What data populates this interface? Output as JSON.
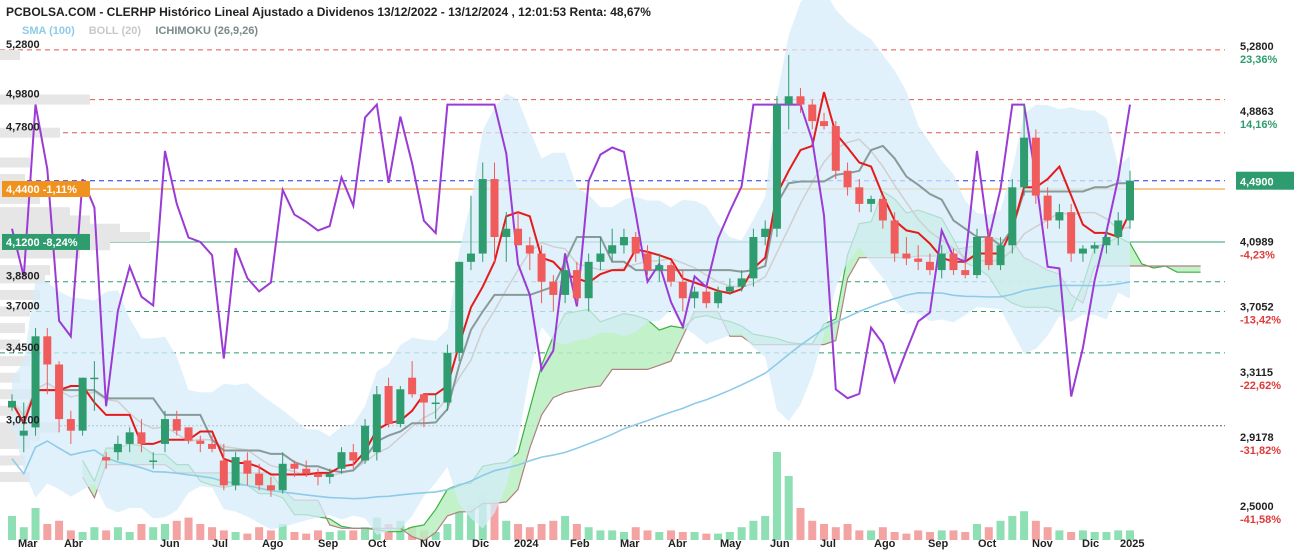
{
  "header": {
    "title": "PCBOLSA.COM - CLERHP Histórico Lineal Ajustado a Dividenos 13/12/2022 - 13/12/2024 , 12:01:53 Renta: 48,67%",
    "indicators": [
      {
        "label": "SMA (100)",
        "color": "#8ecbe8"
      },
      {
        "label": "BOLL (20)",
        "color": "#c8c8c8"
      },
      {
        "label": "ICHIMOKU (26,9,26)",
        "color": "#7a8a8a"
      }
    ]
  },
  "left_tags": [
    {
      "text": "4,4400 -1,11%",
      "value": 4.44,
      "bg": "#f0921e"
    },
    {
      "text": "4,1200 -8,24%",
      "value": 4.12,
      "bg": "#2e9c6e"
    }
  ],
  "right_last": {
    "text": "4,4900",
    "value": 4.49,
    "bg": "#2e9c6e"
  },
  "chart_data": {
    "type": "candlestick",
    "ylim": [
      2.38,
      5.34
    ],
    "x_labels": [
      "Mar",
      "Abr",
      "Jun",
      "Jul",
      "Ago",
      "Sep",
      "Oct",
      "Nov",
      "Dic",
      "2024",
      "Feb",
      "Mar",
      "Abr",
      "May",
      "Jun",
      "Jul",
      "Ago",
      "Sep",
      "Oct",
      "Nov",
      "Dic",
      "2025"
    ],
    "x_labels_bold": [
      "2024",
      "2025"
    ],
    "left_ticks": [
      "5,2800",
      "4,9800",
      "4,7800",
      "3,8800",
      "3,7000",
      "3,4500",
      "3,0100"
    ],
    "left_tick_values": [
      5.28,
      4.98,
      4.78,
      3.88,
      3.7,
      3.45,
      3.01
    ],
    "right_ticks": [
      {
        "price": "5,2800",
        "pct": "23,36%",
        "value": 5.28
      },
      {
        "price": "4,8863",
        "pct": "14,16%",
        "value": 4.8863
      },
      {
        "price": "4,4936",
        "pct": "",
        "value": 4.4936
      },
      {
        "price": "4,0989",
        "pct": "-4,23%",
        "value": 4.0989
      },
      {
        "price": "3,7052",
        "pct": "-13,42%",
        "value": 3.7052
      },
      {
        "price": "3,3115",
        "pct": "-22,62%",
        "value": 3.3115
      },
      {
        "price": "2,9178",
        "pct": "-31,82%",
        "value": 2.9178
      },
      {
        "price": "2,5000",
        "pct": "-41,58%",
        "value": 2.5
      }
    ],
    "reference_lines": [
      {
        "value": 5.28,
        "color": "#e05555",
        "style": "dashed"
      },
      {
        "value": 4.98,
        "color": "#e05555",
        "style": "dashed"
      },
      {
        "value": 4.78,
        "color": "#e05555",
        "style": "dashed"
      },
      {
        "value": 4.49,
        "color": "#2233dd",
        "style": "dashed"
      },
      {
        "value": 4.44,
        "color": "#f0921e",
        "style": "solid"
      },
      {
        "value": 4.12,
        "color": "#2e9c6e",
        "style": "solid"
      },
      {
        "value": 3.88,
        "color": "#2e9c6e",
        "style": "dashed"
      },
      {
        "value": 3.7,
        "color": "#2e9c6e",
        "style": "dashed"
      },
      {
        "value": 3.45,
        "color": "#2e9c6e",
        "style": "dashed"
      },
      {
        "value": 3.01,
        "color": "#555555",
        "style": "dotted"
      }
    ],
    "candles": [
      [
        3.12,
        3.2,
        3.1,
        3.16
      ],
      [
        2.95,
        3.15,
        2.85,
        2.98
      ],
      [
        3.0,
        3.6,
        2.95,
        3.55
      ],
      [
        3.55,
        3.6,
        3.2,
        3.38
      ],
      [
        3.38,
        3.4,
        2.97,
        3.05
      ],
      [
        3.05,
        3.1,
        2.9,
        2.98
      ],
      [
        2.98,
        3.3,
        2.95,
        3.3
      ],
      [
        3.3,
        3.4,
        3.1,
        3.3
      ],
      [
        2.82,
        2.85,
        2.75,
        2.8
      ],
      [
        2.85,
        2.95,
        2.8,
        2.9
      ],
      [
        2.9,
        3.0,
        2.85,
        2.97
      ],
      [
        2.97,
        3.05,
        2.85,
        2.9
      ],
      [
        2.8,
        2.85,
        2.75,
        2.8
      ],
      [
        2.9,
        3.1,
        2.85,
        3.05
      ],
      [
        3.05,
        3.1,
        2.95,
        2.98
      ],
      [
        3.0,
        3.0,
        2.9,
        2.92
      ],
      [
        2.92,
        2.95,
        2.85,
        2.9
      ],
      [
        2.9,
        2.95,
        2.85,
        2.87
      ],
      [
        2.8,
        2.9,
        2.62,
        2.65
      ],
      [
        2.65,
        2.85,
        2.62,
        2.82
      ],
      [
        2.8,
        2.85,
        2.65,
        2.72
      ],
      [
        2.72,
        2.78,
        2.62,
        2.65
      ],
      [
        2.65,
        2.7,
        2.58,
        2.62
      ],
      [
        2.62,
        2.85,
        2.6,
        2.78
      ],
      [
        2.78,
        2.8,
        2.7,
        2.75
      ],
      [
        2.75,
        2.8,
        2.7,
        2.72
      ],
      [
        2.72,
        2.75,
        2.65,
        2.7
      ],
      [
        2.7,
        2.75,
        2.66,
        2.72
      ],
      [
        2.75,
        2.88,
        2.72,
        2.85
      ],
      [
        2.85,
        2.9,
        2.75,
        2.8
      ],
      [
        2.8,
        3.05,
        2.78,
        3.01
      ],
      [
        2.85,
        3.25,
        2.8,
        3.2
      ],
      [
        3.25,
        3.3,
        3.0,
        3.02
      ],
      [
        3.02,
        3.25,
        3.0,
        3.23
      ],
      [
        3.3,
        3.4,
        3.18,
        3.2
      ],
      [
        3.2,
        3.2,
        3.0,
        3.15
      ],
      [
        3.15,
        3.2,
        3.05,
        3.15
      ],
      [
        3.15,
        3.5,
        3.1,
        3.45
      ],
      [
        3.45,
        4.0,
        3.4,
        4.0
      ],
      [
        4.0,
        4.4,
        3.95,
        4.05
      ],
      [
        4.05,
        4.6,
        4.0,
        4.5
      ],
      [
        4.5,
        4.6,
        4.0,
        4.15
      ],
      [
        4.15,
        4.3,
        4.0,
        4.2
      ],
      [
        4.2,
        4.3,
        4.1,
        4.1
      ],
      [
        4.1,
        4.15,
        3.95,
        4.05
      ],
      [
        4.05,
        4.1,
        3.75,
        3.88
      ],
      [
        3.88,
        3.92,
        3.7,
        3.8
      ],
      [
        3.8,
        4.0,
        3.75,
        3.95
      ],
      [
        3.95,
        4.0,
        3.75,
        3.78
      ],
      [
        3.78,
        4.05,
        3.7,
        4.0
      ],
      [
        4.0,
        4.15,
        3.95,
        4.05
      ],
      [
        4.05,
        4.2,
        4.0,
        4.1
      ],
      [
        4.1,
        4.2,
        4.05,
        4.15
      ],
      [
        4.15,
        4.18,
        4.0,
        4.05
      ],
      [
        4.05,
        4.1,
        3.92,
        3.95
      ],
      [
        3.95,
        4.05,
        3.88,
        3.98
      ],
      [
        3.98,
        4.0,
        3.85,
        3.88
      ],
      [
        3.88,
        3.95,
        3.7,
        3.78
      ],
      [
        3.78,
        3.85,
        3.72,
        3.82
      ],
      [
        3.82,
        3.85,
        3.72,
        3.75
      ],
      [
        3.75,
        3.85,
        3.72,
        3.82
      ],
      [
        3.82,
        3.9,
        3.8,
        3.85
      ],
      [
        3.85,
        3.95,
        3.82,
        3.9
      ],
      [
        3.9,
        4.2,
        3.85,
        4.15
      ],
      [
        4.15,
        4.25,
        4.1,
        4.2
      ],
      [
        4.2,
        5.0,
        4.15,
        4.95
      ],
      [
        4.95,
        5.25,
        4.8,
        5.0
      ],
      [
        5.0,
        5.05,
        4.9,
        4.95
      ],
      [
        4.95,
        4.98,
        4.8,
        4.85
      ],
      [
        4.85,
        4.9,
        4.8,
        4.82
      ],
      [
        4.82,
        4.85,
        4.5,
        4.55
      ],
      [
        4.55,
        4.6,
        4.4,
        4.45
      ],
      [
        4.45,
        4.5,
        4.3,
        4.35
      ],
      [
        4.35,
        4.4,
        4.3,
        4.38
      ],
      [
        4.38,
        4.4,
        4.2,
        4.25
      ],
      [
        4.25,
        4.3,
        4.0,
        4.05
      ],
      [
        4.05,
        4.15,
        3.98,
        4.02
      ],
      [
        4.02,
        4.1,
        3.95,
        4.0
      ],
      [
        4.0,
        4.05,
        3.92,
        3.95
      ],
      [
        3.95,
        4.1,
        3.9,
        4.05
      ],
      [
        4.05,
        4.08,
        3.92,
        3.95
      ],
      [
        3.95,
        4.0,
        3.9,
        3.92
      ],
      [
        3.92,
        4.2,
        3.9,
        4.15
      ],
      [
        4.15,
        4.2,
        3.95,
        3.98
      ],
      [
        3.98,
        4.15,
        3.95,
        4.1
      ],
      [
        4.1,
        4.5,
        4.05,
        4.45
      ],
      [
        4.45,
        4.95,
        4.4,
        4.75
      ],
      [
        4.75,
        4.8,
        4.35,
        4.4
      ],
      [
        4.4,
        4.45,
        4.2,
        4.25
      ],
      [
        4.25,
        4.35,
        4.2,
        4.3
      ],
      [
        4.3,
        4.35,
        4.0,
        4.05
      ],
      [
        4.05,
        4.1,
        4.0,
        4.08
      ],
      [
        4.08,
        4.12,
        4.05,
        4.1
      ],
      [
        4.1,
        4.2,
        4.05,
        4.15
      ],
      [
        4.15,
        4.3,
        4.1,
        4.25
      ],
      [
        4.25,
        4.55,
        4.2,
        4.49
      ]
    ],
    "volumes": [
      0.15,
      0.08,
      0.2,
      0.1,
      0.12,
      0.06,
      0.05,
      0.08,
      0.06,
      0.08,
      0.05,
      0.1,
      0.08,
      0.1,
      0.12,
      0.14,
      0.1,
      0.08,
      0.06,
      0.05,
      0.04,
      0.08,
      0.06,
      0.1,
      0.05,
      0.04,
      0.06,
      0.05,
      0.06,
      0.06,
      0.08,
      0.14,
      0.1,
      0.12,
      0.08,
      0.06,
      0.05,
      0.1,
      0.18,
      0.22,
      0.3,
      0.25,
      0.12,
      0.1,
      0.08,
      0.1,
      0.12,
      0.15,
      0.1,
      0.08,
      0.06,
      0.06,
      0.05,
      0.08,
      0.06,
      0.05,
      0.06,
      0.05,
      0.05,
      0.04,
      0.04,
      0.05,
      0.08,
      0.12,
      0.15,
      0.55,
      0.4,
      0.2,
      0.12,
      0.1,
      0.08,
      0.1,
      0.06,
      0.06,
      0.08,
      0.05,
      0.04,
      0.06,
      0.05,
      0.06,
      0.06,
      0.05,
      0.1,
      0.08,
      0.12,
      0.15,
      0.18,
      0.12,
      0.08,
      0.06,
      0.05,
      0.06,
      0.05,
      0.05,
      0.06,
      0.06
    ]
  }
}
